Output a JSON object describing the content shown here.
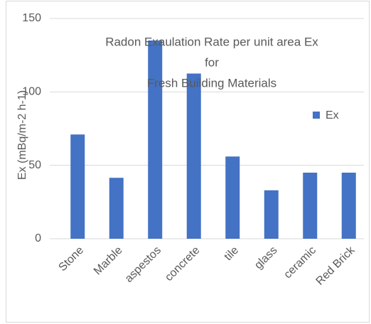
{
  "chart_data": {
    "type": "bar",
    "title": [
      "Radon Exaulation Rate per unit area Ex",
      "for",
      "Fresh Building Materials"
    ],
    "y_label": "Ex (mBq/m-2 h-1)",
    "categories": [
      "Stone",
      "Marble",
      "aspestos",
      "concrete",
      "tile",
      "glass",
      "ceramic",
      "Red Brick"
    ],
    "series": [
      {
        "name": "Ex",
        "color": "#4472c4",
        "values": [
          71,
          41.5,
          135,
          112.5,
          56,
          33,
          45,
          45
        ]
      }
    ],
    "ylim": [
      0,
      150
    ],
    "yticks": [
      0,
      50,
      100,
      150
    ],
    "grid": true,
    "legend": "right"
  }
}
